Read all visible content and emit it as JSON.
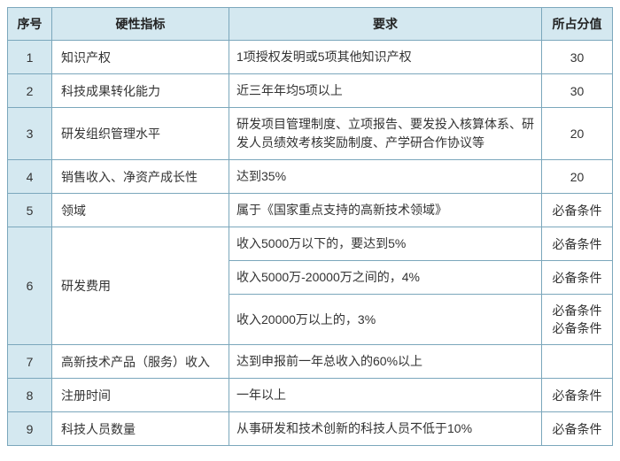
{
  "table": {
    "headers": {
      "seq": "序号",
      "indicator": "硬性指标",
      "requirement": "要求",
      "score": "所占分值"
    },
    "colors": {
      "header_bg": "#d4e8f0",
      "seq_bg": "#d4e8f0",
      "border": "#7ba7bc",
      "text": "#333333",
      "background": "#ffffff"
    },
    "font_size": 14,
    "rows": [
      {
        "seq": "1",
        "indicator": "知识产权",
        "requirement": "1项授权发明或5项其他知识产权",
        "score": "30",
        "seq_rowspan": 1,
        "ind_rowspan": 1
      },
      {
        "seq": "2",
        "indicator": "科技成果转化能力",
        "requirement": "近三年年均5项以上",
        "score": "30",
        "seq_rowspan": 1,
        "ind_rowspan": 1
      },
      {
        "seq": "3",
        "indicator": "研发组织管理水平",
        "requirement": "研发项目管理制度、立项报告、要发投入核算体系、研发人员绩效考核奖励制度、产学研合作协议等",
        "score": "20",
        "seq_rowspan": 1,
        "ind_rowspan": 1
      },
      {
        "seq": "4",
        "indicator": "销售收入、净资产成长性",
        "requirement": "达到35%",
        "score": "20",
        "seq_rowspan": 1,
        "ind_rowspan": 1
      },
      {
        "seq": "5",
        "indicator": "领域",
        "requirement": "属于《国家重点支持的高新技术领域》",
        "score": "必备条件",
        "seq_rowspan": 1,
        "ind_rowspan": 1
      },
      {
        "seq": "6",
        "indicator": "研发费用",
        "requirement": "收入5000万以下的，要达到5%",
        "score": "必备条件",
        "seq_rowspan": 3,
        "ind_rowspan": 3
      },
      {
        "seq": "",
        "indicator": "",
        "requirement": "收入5000万-20000万之间的，4%",
        "score": "必备条件",
        "seq_rowspan": 0,
        "ind_rowspan": 0
      },
      {
        "seq": "",
        "indicator": "",
        "requirement": "收入20000万以上的，3%",
        "score": "必备条件 必备条件",
        "seq_rowspan": 0,
        "ind_rowspan": 0
      },
      {
        "seq": "7",
        "indicator": "高新技术产品（服务）收入",
        "requirement": "达到申报前一年总收入的60%以上",
        "score": "",
        "seq_rowspan": 1,
        "ind_rowspan": 1
      },
      {
        "seq": "8",
        "indicator": "注册时间",
        "requirement": "一年以上",
        "score": "必备条件",
        "seq_rowspan": 1,
        "ind_rowspan": 1
      },
      {
        "seq": "9",
        "indicator": "科技人员数量",
        "requirement": "从事研发和技术创新的科技人员不低于10%",
        "score": "必备条件",
        "seq_rowspan": 1,
        "ind_rowspan": 1
      }
    ]
  }
}
